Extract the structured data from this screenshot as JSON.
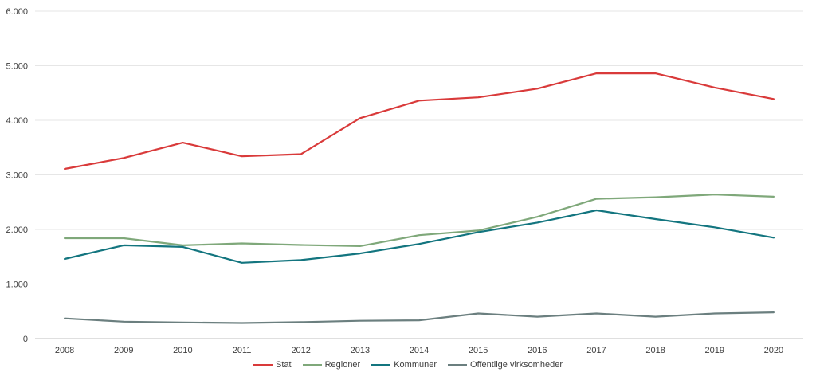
{
  "chart_data": {
    "type": "line",
    "x": [
      "2008",
      "2009",
      "2010",
      "2011",
      "2012",
      "2013",
      "2014",
      "2015",
      "2016",
      "2017",
      "2018",
      "2019",
      "2020"
    ],
    "ylim": [
      0,
      6000
    ],
    "yticks": [
      0,
      1000,
      2000,
      3000,
      4000,
      5000,
      6000
    ],
    "ytick_labels": [
      "0",
      "1.000",
      "2.000",
      "3.000",
      "4.000",
      "5.000",
      "6.000"
    ],
    "grid": true,
    "legend_position": "bottom",
    "series": [
      {
        "name": "Stat",
        "color": "#d93a3a",
        "values": [
          3110,
          3310,
          3590,
          3340,
          3380,
          4040,
          4360,
          4420,
          4580,
          4860,
          4860,
          4600,
          4390
        ]
      },
      {
        "name": "Regioner",
        "color": "#7fa87a",
        "values": [
          1840,
          1840,
          1710,
          1745,
          1715,
          1695,
          1895,
          1980,
          2230,
          2560,
          2590,
          2640,
          2600
        ]
      },
      {
        "name": "Kommuner",
        "color": "#13757f",
        "values": [
          1460,
          1710,
          1680,
          1390,
          1440,
          1560,
          1735,
          1950,
          2125,
          2350,
          2190,
          2040,
          1850
        ]
      },
      {
        "name": "Offentlige virksomheder",
        "color": "#6b7f7f",
        "values": [
          370,
          310,
          295,
          285,
          300,
          325,
          335,
          460,
          400,
          460,
          400,
          460,
          480
        ]
      }
    ]
  }
}
